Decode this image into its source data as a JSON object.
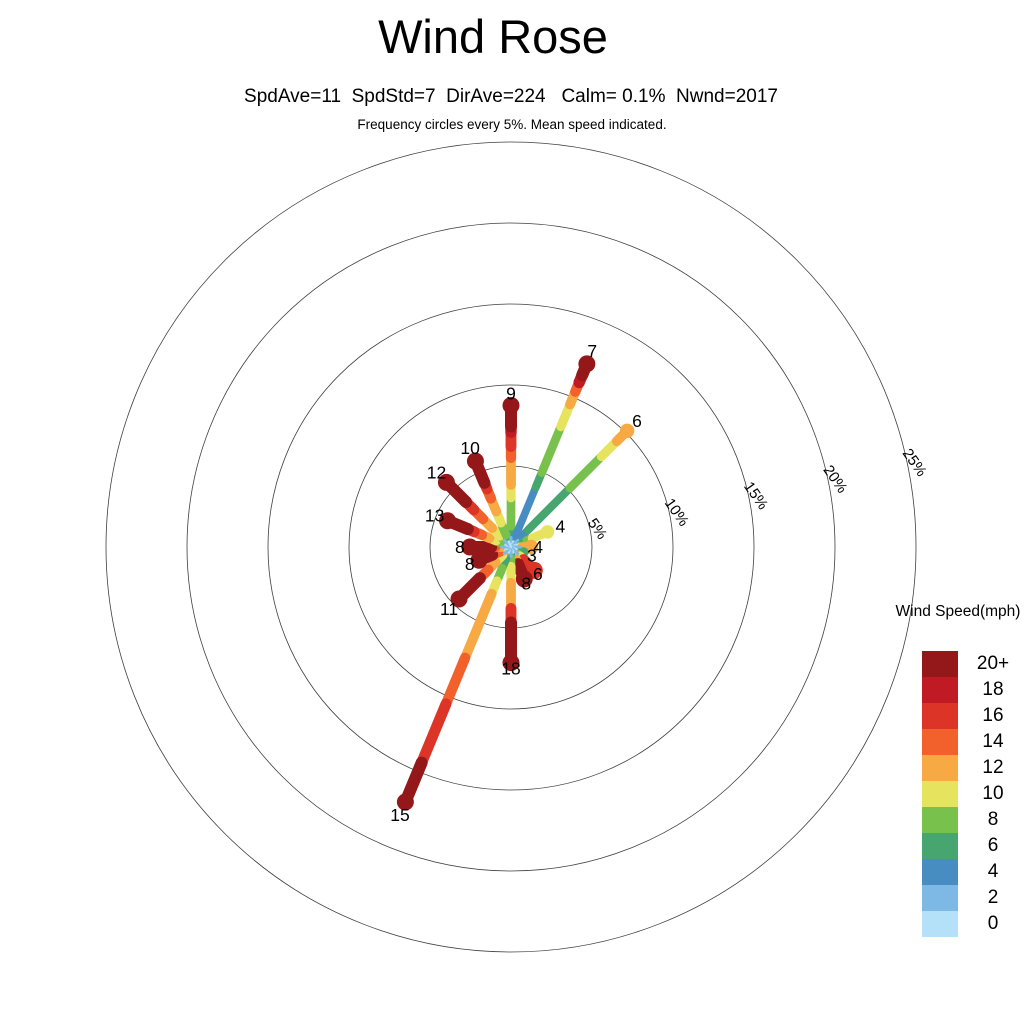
{
  "page": {
    "background": "#ffffff"
  },
  "chart_data": {
    "type": "windrose",
    "title": "Wind Rose",
    "stats_line": "SpdAve=11  SpdStd=7  DirAve=224   Calm= 0.1%  Nwnd=2017",
    "stats": {
      "SpdAve": 11,
      "SpdStd": 7,
      "DirAve": 224,
      "Calm_pct": 0.1,
      "Nwnd": 2017
    },
    "note_line": "Frequency circles every 5%. Mean speed indicated.",
    "rings": {
      "step_pct": 5,
      "max_pct": 25,
      "labels": [
        "5%",
        "10%",
        "15%",
        "20%",
        "25%"
      ]
    },
    "legend": {
      "title": "Wind Speed(mph)",
      "bins": [
        {
          "label": "20+",
          "color": "#941719"
        },
        {
          "label": "18",
          "color": "#c01b24"
        },
        {
          "label": "16",
          "color": "#dd3428"
        },
        {
          "label": "14",
          "color": "#f2602c"
        },
        {
          "label": "12",
          "color": "#f7a943"
        },
        {
          "label": "10",
          "color": "#e6e45f"
        },
        {
          "label": "8",
          "color": "#78c14d"
        },
        {
          "label": "6",
          "color": "#47a570"
        },
        {
          "label": "4",
          "color": "#488dc2"
        },
        {
          "label": "2",
          "color": "#7db9e4"
        },
        {
          "label": "0",
          "color": "#b4e1f8"
        }
      ]
    },
    "calm_marker_colors": [
      "#7db9e4",
      "#b4e1f8"
    ],
    "spokes": [
      {
        "dir": "N",
        "angle_deg": 0,
        "freq_pct": 8.8,
        "mean_speed": "9",
        "label_offset": 11,
        "segments": [
          [
            "4",
            0.1
          ],
          [
            "6",
            0.04
          ],
          [
            "8",
            0.2
          ],
          [
            "10",
            0.09
          ],
          [
            "12",
            0.19
          ],
          [
            "14",
            0.08
          ],
          [
            "16",
            0.1
          ],
          [
            "18",
            0.04
          ],
          [
            "20+",
            0.16
          ]
        ]
      },
      {
        "dir": "NNE",
        "angle_deg": 22.5,
        "freq_pct": 12.3,
        "mean_speed": "7",
        "label_offset": 13,
        "segments": [
          [
            "4",
            0.32
          ],
          [
            "6",
            0.08
          ],
          [
            "8",
            0.25
          ],
          [
            "10",
            0.12
          ],
          [
            "12",
            0.07
          ],
          [
            "14",
            0.05
          ],
          [
            "18",
            0.04
          ],
          [
            "20+",
            0.07
          ]
        ]
      },
      {
        "dir": "NE",
        "angle_deg": 45,
        "freq_pct": 10.2,
        "mean_speed": "6",
        "label_offset": 13,
        "segments": [
          [
            "4",
            0.14
          ],
          [
            "6",
            0.36
          ],
          [
            "8",
            0.27
          ],
          [
            "10",
            0.13
          ],
          [
            "12",
            0.1
          ]
        ]
      },
      {
        "dir": "ENE",
        "angle_deg": 67.5,
        "freq_pct": 2.5,
        "mean_speed": "4",
        "label_offset": 13,
        "segments": [
          [
            "6",
            0.4
          ],
          [
            "8",
            0.15
          ],
          [
            "10",
            0.45
          ]
        ]
      },
      {
        "dir": "E",
        "angle_deg": 90,
        "freq_pct": 1.3,
        "mean_speed": "4",
        "label_offset": 6,
        "segments": [
          [
            "6",
            0.4
          ],
          [
            "10",
            0.1
          ],
          [
            "12",
            0.5
          ]
        ]
      },
      {
        "dir": "ESE",
        "angle_deg": 112.5,
        "freq_pct": 0.9,
        "mean_speed": "3",
        "label_offset": 8,
        "segments": [
          [
            "2",
            0.4
          ],
          [
            "6",
            0.6
          ]
        ]
      },
      {
        "dir": "SE",
        "angle_deg": 135,
        "freq_pct": 2.1,
        "mean_speed": "6",
        "label_offset": 4,
        "segments": [
          [
            "6",
            0.25
          ],
          [
            "8",
            0.1
          ],
          [
            "10",
            0.15
          ],
          [
            "16",
            0.5
          ]
        ]
      },
      {
        "dir": "SSE",
        "angle_deg": 157.5,
        "freq_pct": 2.2,
        "mean_speed": "8",
        "label_offset": 4,
        "segments": [
          [
            "6",
            0.2
          ],
          [
            "10",
            0.15
          ],
          [
            "12",
            0.15
          ],
          [
            "20+",
            0.5
          ]
        ]
      },
      {
        "dir": "S",
        "angle_deg": 180,
        "freq_pct": 7.2,
        "mean_speed": "18",
        "label_offset": 5,
        "segments": [
          [
            "4",
            0.04
          ],
          [
            "6",
            0.05
          ],
          [
            "8",
            0.07
          ],
          [
            "10",
            0.14
          ],
          [
            "12",
            0.22
          ],
          [
            "16",
            0.12
          ],
          [
            "20+",
            0.36
          ]
        ]
      },
      {
        "dir": "SSW",
        "angle_deg": 202.5,
        "freq_pct": 17.1,
        "mean_speed": "15",
        "label_offset": 13,
        "segments": [
          [
            "4",
            0.05
          ],
          [
            "6",
            0.03
          ],
          [
            "8",
            0.05
          ],
          [
            "10",
            0.05
          ],
          [
            "12",
            0.25
          ],
          [
            "14",
            0.18
          ],
          [
            "16",
            0.23
          ],
          [
            "20+",
            0.16
          ]
        ]
      },
      {
        "dir": "SW",
        "angle_deg": 225,
        "freq_pct": 4.6,
        "mean_speed": "11",
        "label_offset": 13,
        "segments": [
          [
            "6",
            0.1
          ],
          [
            "8",
            0.05
          ],
          [
            "10",
            0.13
          ],
          [
            "12",
            0.14
          ],
          [
            "14",
            0.16
          ],
          [
            "20+",
            0.42
          ]
        ]
      },
      {
        "dir": "WSW",
        "angle_deg": 247.5,
        "freq_pct": 2.2,
        "mean_speed": "8",
        "label_offset": 9,
        "segments": [
          [
            "10",
            0.15
          ],
          [
            "12",
            0.15
          ],
          [
            "14",
            0.25
          ],
          [
            "20+",
            0.45
          ]
        ]
      },
      {
        "dir": "W",
        "angle_deg": 270,
        "freq_pct": 2.6,
        "mean_speed": "8",
        "label_offset": 9,
        "segments": [
          [
            "4",
            0.08
          ],
          [
            "10",
            0.15
          ],
          [
            "12",
            0.12
          ],
          [
            "14",
            0.1
          ],
          [
            "20+",
            0.55
          ]
        ]
      },
      {
        "dir": "WNW",
        "angle_deg": 292.5,
        "freq_pct": 4.3,
        "mean_speed": "13",
        "label_offset": 13,
        "segments": [
          [
            "6",
            0.12
          ],
          [
            "8",
            0.1
          ],
          [
            "10",
            0.1
          ],
          [
            "12",
            0.12
          ],
          [
            "14",
            0.12
          ],
          [
            "16",
            0.1
          ],
          [
            "20+",
            0.34
          ]
        ]
      },
      {
        "dir": "NW",
        "angle_deg": 315,
        "freq_pct": 5.7,
        "mean_speed": "12",
        "label_offset": 13,
        "segments": [
          [
            "6",
            0.06
          ],
          [
            "8",
            0.1
          ],
          [
            "10",
            0.12
          ],
          [
            "12",
            0.14
          ],
          [
            "14",
            0.14
          ],
          [
            "16",
            0.12
          ],
          [
            "20+",
            0.32
          ]
        ]
      },
      {
        "dir": "NNW",
        "angle_deg": 337.5,
        "freq_pct": 5.8,
        "mean_speed": "10",
        "label_offset": 13,
        "segments": [
          [
            "4",
            0.06
          ],
          [
            "6",
            0.07
          ],
          [
            "8",
            0.14
          ],
          [
            "10",
            0.13
          ],
          [
            "12",
            0.15
          ],
          [
            "14",
            0.11
          ],
          [
            "16",
            0.07
          ],
          [
            "20+",
            0.27
          ]
        ]
      }
    ]
  }
}
